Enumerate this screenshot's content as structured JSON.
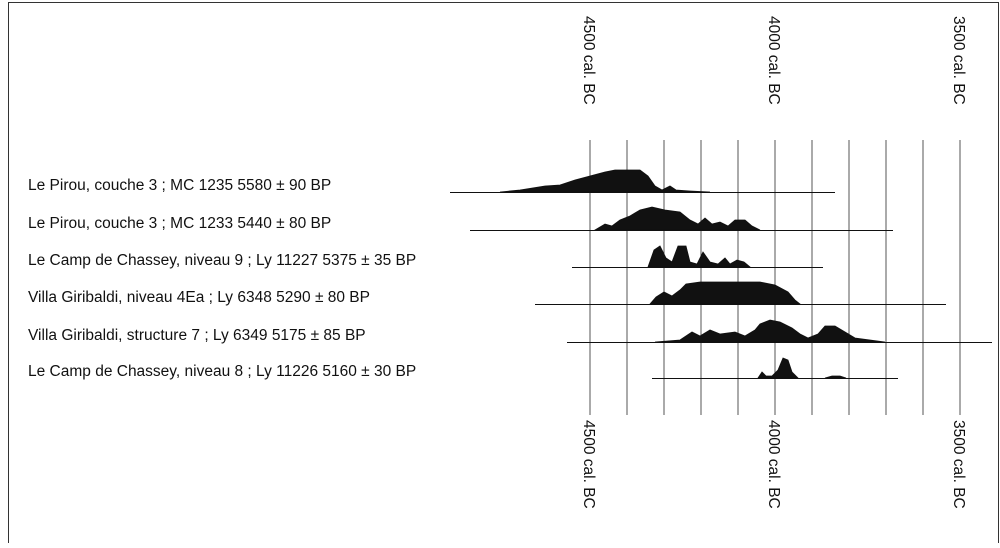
{
  "axis": {
    "ticks": [
      {
        "value": 4500,
        "label": "4500 cal. BC"
      },
      {
        "value": 4000,
        "label": "4000 cal. BC"
      },
      {
        "value": 3500,
        "label": "3500 cal. BC"
      }
    ]
  },
  "samples": [
    {
      "label": "Le Pirou, couche 3 ; MC 1235  5580 ± 90 BP"
    },
    {
      "label": "Le Pirou, couche 3 ; MC 1233  5440 ± 80 BP"
    },
    {
      "label": "Le Camp de Chassey, niveau 9 ; Ly 11227  5375 ± 35 BP"
    },
    {
      "label": "Villa Giribaldi, niveau 4Ea ; Ly 6348  5290 ± 80 BP"
    },
    {
      "label": "Villa Giribaldi, structure 7 ; Ly 6349  5175 ± 85 BP"
    },
    {
      "label": "Le Camp de Chassey, niveau 8 ; Ly 11226  5160 ± 30 BP"
    }
  ]
}
